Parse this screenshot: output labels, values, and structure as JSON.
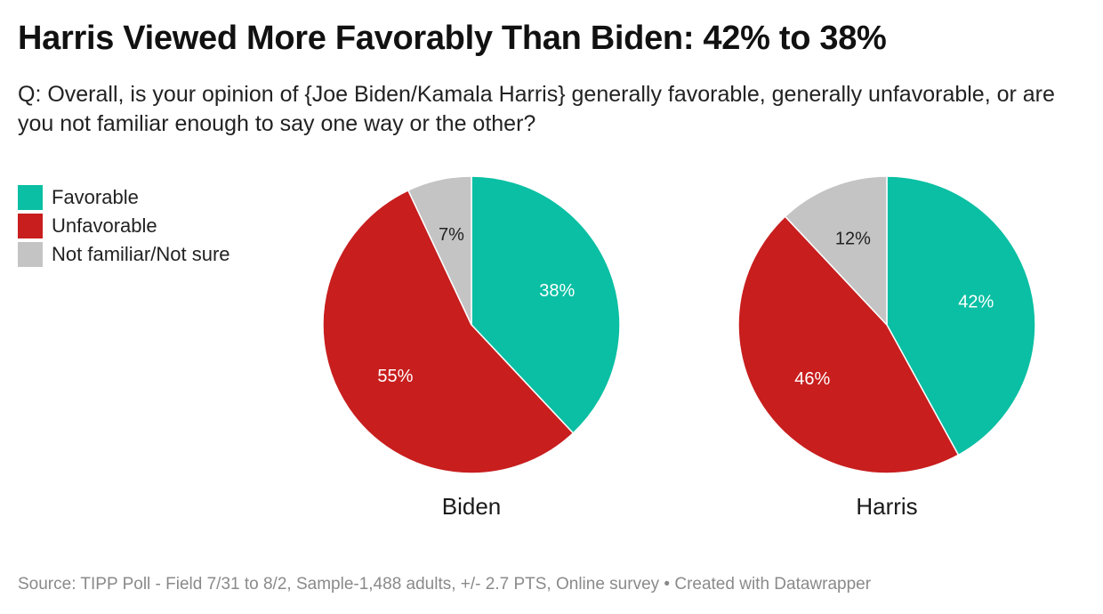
{
  "title": "Harris Viewed More Favorably Than Biden: 42% to 38%",
  "subtitle": "Q: Overall, is your opinion of {Joe Biden/Kamala Harris} generally favorable, generally unfavorable, or are you not familiar enough to say one way or the other?",
  "legend": [
    {
      "label": "Favorable",
      "color": "#0ABFA3"
    },
    {
      "label": "Unfavorable",
      "color": "#C81E1E"
    },
    {
      "label": "Not familiar/Not sure",
      "color": "#C4C4C4"
    }
  ],
  "footer": "Source: TIPP Poll - Field 7/31 to 8/2, Sample-1,488 adults, +/- 2.7 PTS, Online survey • Created with Datawrapper",
  "chart_data": [
    {
      "type": "pie",
      "title": "Biden",
      "categories": [
        "Favorable",
        "Unfavorable",
        "Not familiar/Not sure"
      ],
      "values": [
        38,
        55,
        7
      ],
      "labels": [
        "38%",
        "55%",
        "7%"
      ],
      "colors": [
        "#0ABFA3",
        "#C81E1E",
        "#C4C4C4"
      ]
    },
    {
      "type": "pie",
      "title": "Harris",
      "categories": [
        "Favorable",
        "Unfavorable",
        "Not familiar/Not sure"
      ],
      "values": [
        42,
        46,
        12
      ],
      "labels": [
        "42%",
        "46%",
        "12%"
      ],
      "colors": [
        "#0ABFA3",
        "#C81E1E",
        "#C4C4C4"
      ]
    }
  ]
}
